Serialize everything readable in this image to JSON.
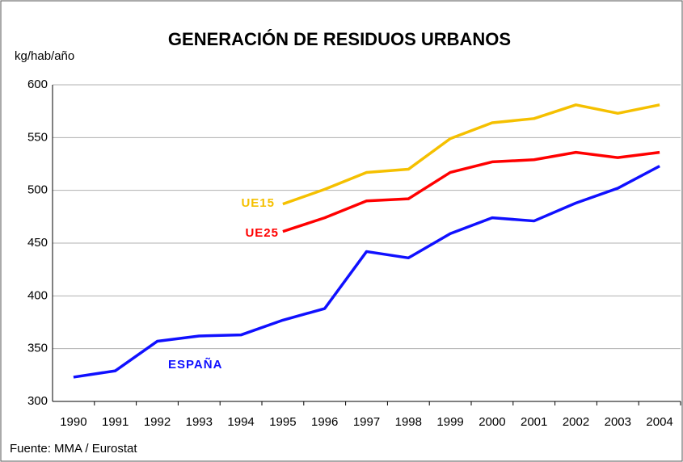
{
  "chart_data": {
    "type": "line",
    "title": "GENERACIÓN DE RESIDUOS URBANOS",
    "y_label": "kg/hab/año",
    "source": "Fuente: MMA / Eurostat",
    "categories": [
      "1990",
      "1991",
      "1992",
      "1993",
      "1994",
      "1995",
      "1996",
      "1997",
      "1998",
      "1999",
      "2000",
      "2001",
      "2002",
      "2003",
      "2004"
    ],
    "series": [
      {
        "name": "UE15",
        "color": "#f5c000",
        "values": [
          null,
          null,
          null,
          null,
          null,
          487,
          501,
          517,
          520,
          549,
          564,
          568,
          581,
          573,
          581
        ]
      },
      {
        "name": "UE25",
        "color": "#ff0000",
        "values": [
          null,
          null,
          null,
          null,
          null,
          461,
          474,
          490,
          492,
          517,
          527,
          529,
          536,
          531,
          536
        ]
      },
      {
        "name": "ESPAÑA",
        "color": "#1010ff",
        "values": [
          323,
          329,
          357,
          362,
          363,
          377,
          388,
          442,
          436,
          459,
          474,
          471,
          488,
          502,
          523
        ]
      }
    ],
    "ylim": [
      300,
      600
    ],
    "yticks": [
      300,
      350,
      400,
      450,
      500,
      550,
      600
    ],
    "grid": true
  }
}
